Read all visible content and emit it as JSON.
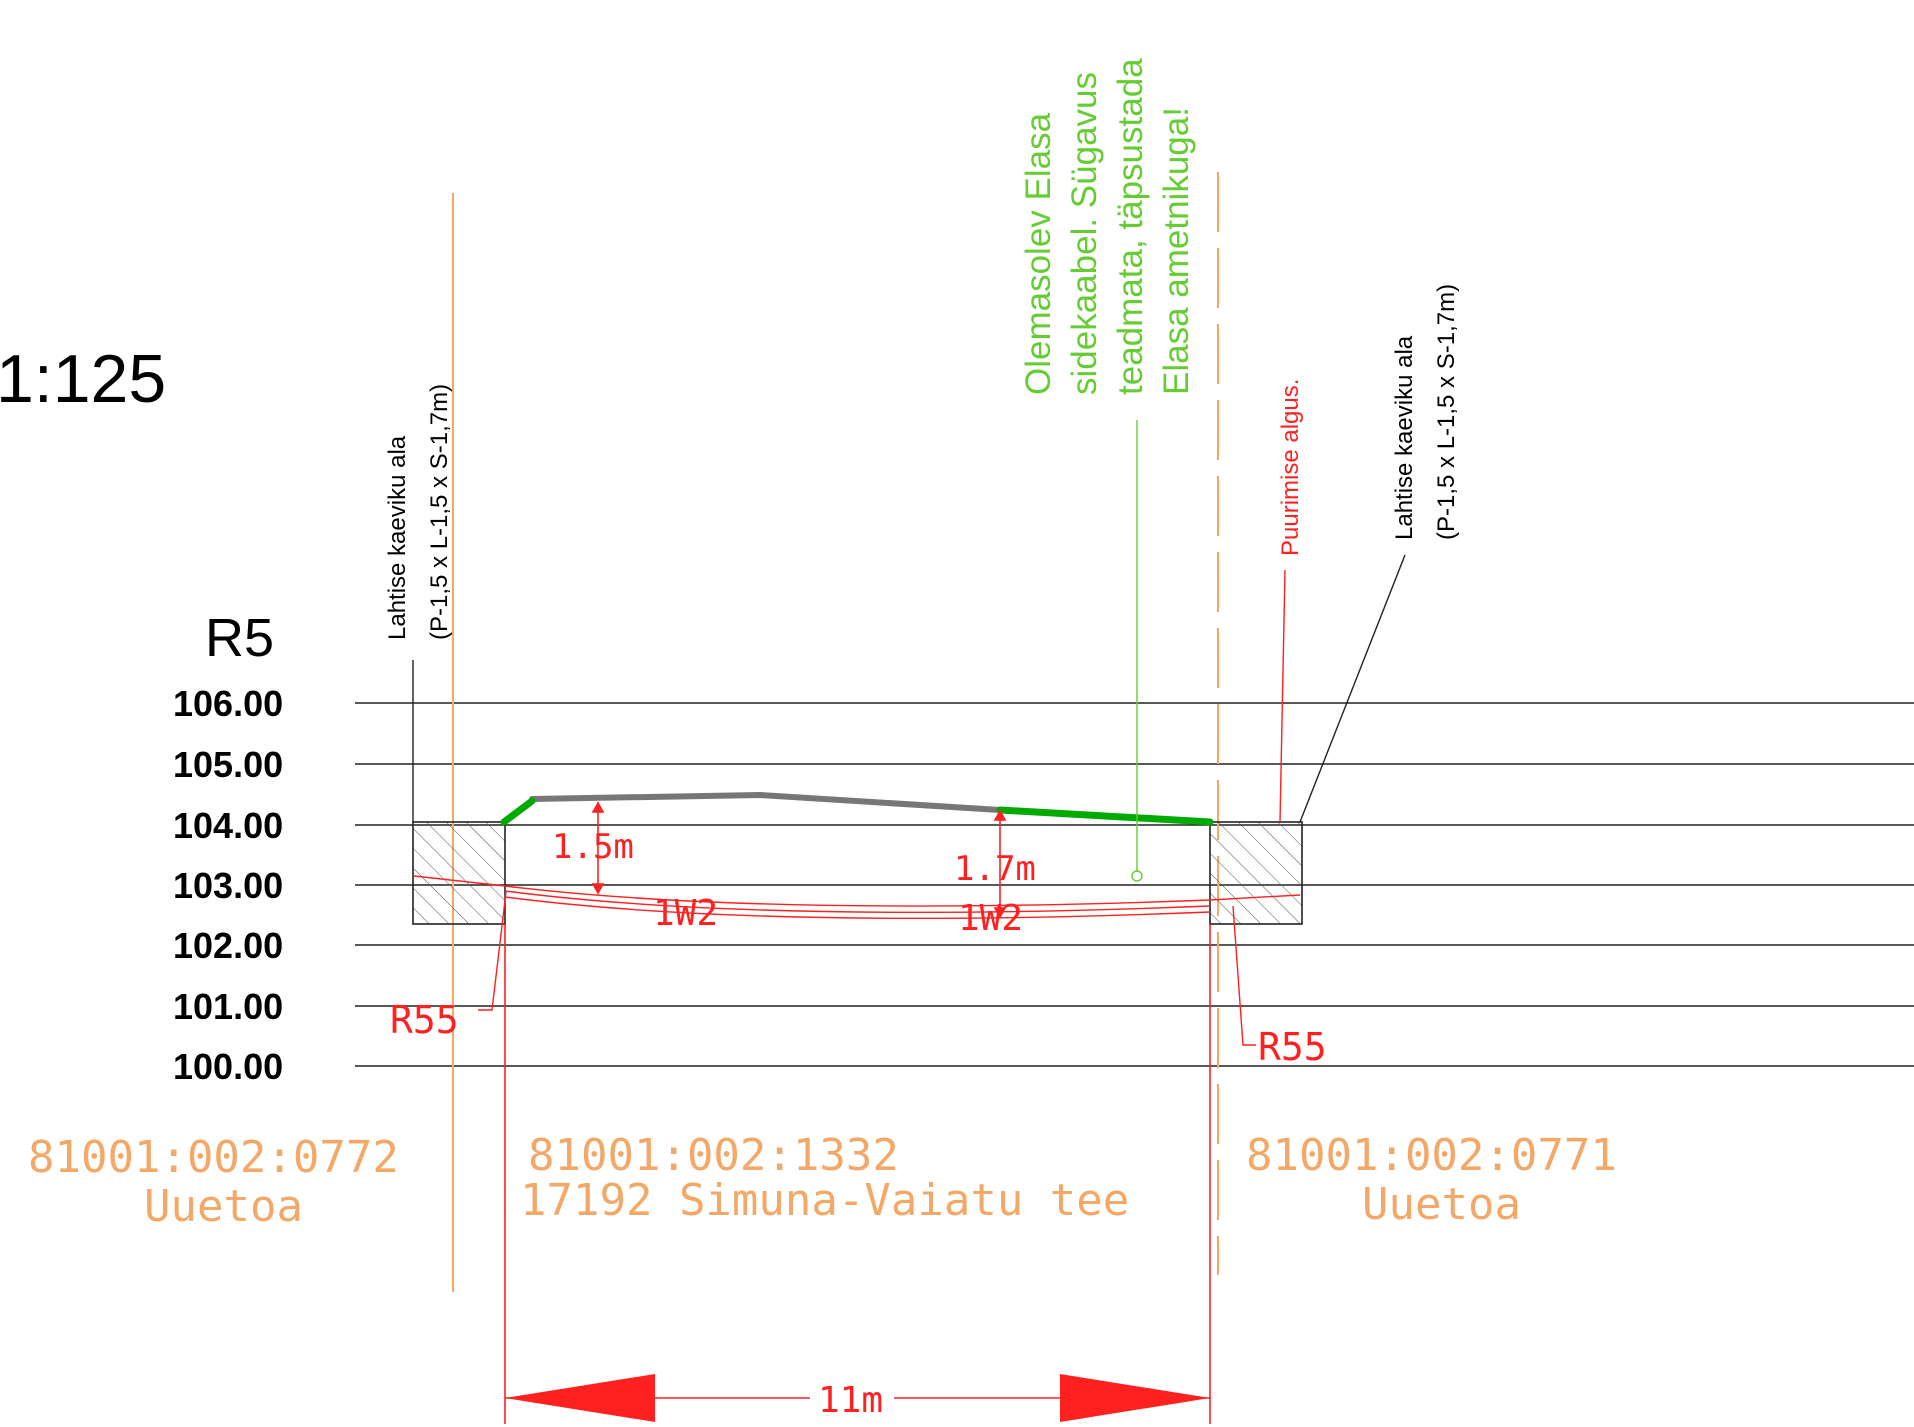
{
  "scale": "1:125",
  "section_label": "R5",
  "elevations": [
    "106.00",
    "105.00",
    "104.00",
    "103.00",
    "102.00",
    "101.00",
    "100.00"
  ],
  "trench_left_note": {
    "line1": "Lahtise kaeviku ala",
    "line2": "(P-1,5 x L-1,5 x S-1,7m)"
  },
  "trench_right_note": {
    "line1": "Lahtise kaeviku ala",
    "line2": "(P-1,5 x L-1,5 x S-1,7m)"
  },
  "cable_note": {
    "line1": "Olemasolev Elasa",
    "line2": "sidekaabel. Sügavus",
    "line3": "teadmata, täpsustada",
    "line4": "Elasa ametnikuga!"
  },
  "drilling_start_note": "Puurimise algus.",
  "depth_left": "1.5m",
  "depth_right": "1.7m",
  "pipe_label_1": "1W2",
  "pipe_label_2": "1W2",
  "bend_left": "R55",
  "bend_right": "R55",
  "parcels": [
    {
      "id": "81001:002:0772",
      "name": "Uuetoa"
    },
    {
      "id": "81001:002:1332",
      "name": "17192 Simuna-Vaiatu tee"
    },
    {
      "id": "81001:002:0771",
      "name": "Uuetoa"
    }
  ],
  "total_length": "11m",
  "colors": {
    "orange": "#f4a868",
    "red": "#ff2020",
    "green_note": "#66cc33",
    "green_line": "#00aa00",
    "grey_line": "#777777"
  }
}
